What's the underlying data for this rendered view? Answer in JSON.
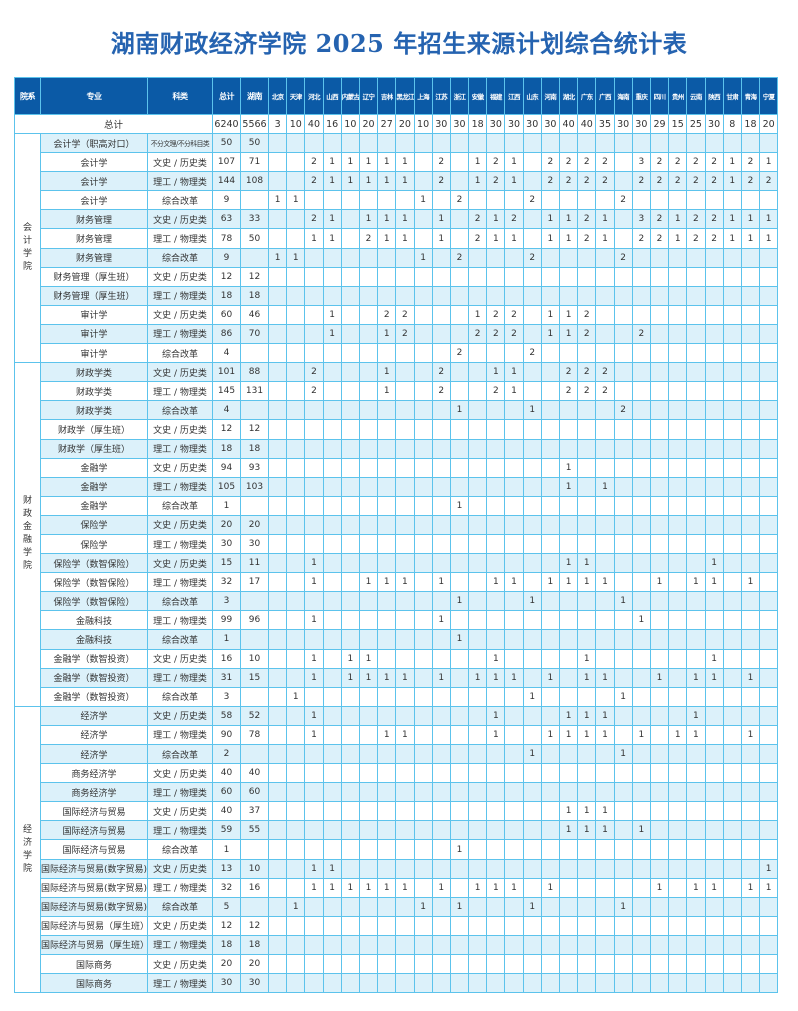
{
  "title": "湖南财政经济学院 2025 年招生来源计划综合统计表",
  "colors": {
    "header_bg": "#0b5aa6",
    "title": "#2563b0",
    "grid": "#5cc3ec",
    "row_shade": "#dcf1fa"
  },
  "headers": {
    "college": "院系",
    "major": "专业",
    "type": "科类",
    "total": "总计",
    "hunan": "湖南"
  },
  "provinces": [
    "北京",
    "天津",
    "河北",
    "山西",
    "内蒙古",
    "辽宁",
    "吉林",
    "黑龙江",
    "上海",
    "江苏",
    "浙江",
    "安徽",
    "福建",
    "江西",
    "山东",
    "河南",
    "湖北",
    "广东",
    "广西",
    "海南",
    "重庆",
    "四川",
    "贵州",
    "云南",
    "陕西",
    "甘肃",
    "青海",
    "宁夏"
  ],
  "total_row": {
    "label": "总计",
    "total": "6240",
    "hunan": "5566",
    "quota": {
      "北京": "3",
      "天津": "10",
      "河北": "40",
      "山西": "16",
      "内蒙古": "10",
      "辽宁": "20",
      "吉林": "27",
      "黑龙江": "20",
      "上海": "10",
      "江苏": "30",
      "浙江": "30",
      "安徽": "18",
      "福建": "30",
      "江西": "30",
      "山东": "30",
      "河南": "30",
      "湖北": "40",
      "广东": "40",
      "广西": "35",
      "海南": "30",
      "重庆": "30",
      "四川": "29",
      "贵州": "15",
      "云南": "25",
      "陕西": "30",
      "甘肃": "8",
      "青海": "18",
      "宁夏": "20"
    }
  },
  "colleges": [
    {
      "name": "会计学院",
      "rows": [
        {
          "major": "会计学（职高对口）",
          "type": "不分文理/不分科目类",
          "total": "50",
          "hunan": "50",
          "quota": {}
        },
        {
          "major": "会计学",
          "type": "文史 / 历史类",
          "total": "107",
          "hunan": "71",
          "quota": {
            "河北": "2",
            "山西": "1",
            "内蒙古": "1",
            "辽宁": "1",
            "吉林": "1",
            "黑龙江": "1",
            "江苏": "2",
            "安徽": "1",
            "福建": "2",
            "江西": "1",
            "河南": "2",
            "湖北": "2",
            "广东": "2",
            "广西": "2",
            "重庆": "3",
            "四川": "2",
            "贵州": "2",
            "云南": "2",
            "陕西": "2",
            "甘肃": "1",
            "青海": "2",
            "宁夏": "1"
          }
        },
        {
          "major": "会计学",
          "type": "理工 / 物理类",
          "total": "144",
          "hunan": "108",
          "quota": {
            "河北": "2",
            "山西": "1",
            "内蒙古": "1",
            "辽宁": "1",
            "吉林": "1",
            "黑龙江": "1",
            "江苏": "2",
            "安徽": "1",
            "福建": "2",
            "江西": "1",
            "河南": "2",
            "湖北": "2",
            "广东": "2",
            "广西": "2",
            "重庆": "2",
            "四川": "2",
            "贵州": "2",
            "云南": "2",
            "陕西": "2",
            "甘肃": "1",
            "青海": "2",
            "宁夏": "2"
          }
        },
        {
          "major": "会计学",
          "type": "综合改革",
          "total": "9",
          "hunan": "",
          "quota": {
            "北京": "1",
            "天津": "1",
            "上海": "1",
            "浙江": "2",
            "山东": "2",
            "海南": "2"
          }
        },
        {
          "major": "财务管理",
          "type": "文史 / 历史类",
          "total": "63",
          "hunan": "33",
          "quota": {
            "河北": "2",
            "山西": "1",
            "辽宁": "1",
            "吉林": "1",
            "黑龙江": "1",
            "江苏": "1",
            "安徽": "2",
            "福建": "1",
            "江西": "2",
            "河南": "1",
            "湖北": "1",
            "广东": "2",
            "广西": "1",
            "重庆": "3",
            "四川": "2",
            "贵州": "1",
            "云南": "2",
            "陕西": "2",
            "甘肃": "1",
            "青海": "1",
            "宁夏": "1"
          }
        },
        {
          "major": "财务管理",
          "type": "理工 / 物理类",
          "total": "78",
          "hunan": "50",
          "quota": {
            "河北": "1",
            "山西": "1",
            "辽宁": "2",
            "吉林": "1",
            "黑龙江": "1",
            "江苏": "1",
            "安徽": "2",
            "福建": "1",
            "江西": "1",
            "河南": "1",
            "湖北": "1",
            "广东": "2",
            "广西": "1",
            "重庆": "2",
            "四川": "2",
            "贵州": "1",
            "云南": "2",
            "陕西": "2",
            "甘肃": "1",
            "青海": "1",
            "宁夏": "1"
          }
        },
        {
          "major": "财务管理",
          "type": "综合改革",
          "total": "9",
          "hunan": "",
          "quota": {
            "北京": "1",
            "天津": "1",
            "上海": "1",
            "浙江": "2",
            "山东": "2",
            "海南": "2"
          }
        },
        {
          "major": "财务管理（厚生班）",
          "type": "文史 / 历史类",
          "total": "12",
          "hunan": "12",
          "quota": {}
        },
        {
          "major": "财务管理（厚生班）",
          "type": "理工 / 物理类",
          "total": "18",
          "hunan": "18",
          "quota": {}
        },
        {
          "major": "审计学",
          "type": "文史 / 历史类",
          "total": "60",
          "hunan": "46",
          "quota": {
            "山西": "1",
            "吉林": "2",
            "黑龙江": "2",
            "安徽": "1",
            "福建": "2",
            "江西": "2",
            "河南": "1",
            "湖北": "1",
            "广东": "2"
          }
        },
        {
          "major": "审计学",
          "type": "理工 / 物理类",
          "total": "86",
          "hunan": "70",
          "quota": {
            "山西": "1",
            "吉林": "1",
            "黑龙江": "2",
            "安徽": "2",
            "福建": "2",
            "江西": "2",
            "河南": "1",
            "湖北": "1",
            "广东": "2",
            "重庆": "2"
          }
        },
        {
          "major": "审计学",
          "type": "综合改革",
          "total": "4",
          "hunan": "",
          "quota": {
            "浙江": "2",
            "山东": "2"
          }
        }
      ]
    },
    {
      "name": "财政金融学院",
      "rows": [
        {
          "major": "财政学类",
          "type": "文史 / 历史类",
          "total": "101",
          "hunan": "88",
          "quota": {
            "河北": "2",
            "吉林": "1",
            "江苏": "2",
            "福建": "1",
            "江西": "1",
            "湖北": "2",
            "广东": "2",
            "广西": "2"
          }
        },
        {
          "major": "财政学类",
          "type": "理工 / 物理类",
          "total": "145",
          "hunan": "131",
          "quota": {
            "河北": "2",
            "吉林": "1",
            "江苏": "2",
            "福建": "2",
            "江西": "1",
            "湖北": "2",
            "广东": "2",
            "广西": "2"
          }
        },
        {
          "major": "财政学类",
          "type": "综合改革",
          "total": "4",
          "hunan": "",
          "quota": {
            "浙江": "1",
            "山东": "1",
            "海南": "2"
          }
        },
        {
          "major": "财政学（厚生班）",
          "type": "文史 / 历史类",
          "total": "12",
          "hunan": "12",
          "quota": {}
        },
        {
          "major": "财政学（厚生班）",
          "type": "理工 / 物理类",
          "total": "18",
          "hunan": "18",
          "quota": {}
        },
        {
          "major": "金融学",
          "type": "文史 / 历史类",
          "total": "94",
          "hunan": "93",
          "quota": {
            "湖北": "1"
          }
        },
        {
          "major": "金融学",
          "type": "理工 / 物理类",
          "total": "105",
          "hunan": "103",
          "quota": {
            "湖北": "1",
            "广西": "1"
          }
        },
        {
          "major": "金融学",
          "type": "综合改革",
          "total": "1",
          "hunan": "",
          "quota": {
            "浙江": "1"
          }
        },
        {
          "major": "保险学",
          "type": "文史 / 历史类",
          "total": "20",
          "hunan": "20",
          "quota": {}
        },
        {
          "major": "保险学",
          "type": "理工 / 物理类",
          "total": "30",
          "hunan": "30",
          "quota": {}
        },
        {
          "major": "保险学（数智保险）",
          "type": "文史 / 历史类",
          "total": "15",
          "hunan": "11",
          "quota": {
            "河北": "1",
            "湖北": "1",
            "广东": "1",
            "陕西": "1"
          }
        },
        {
          "major": "保险学（数智保险）",
          "type": "理工 / 物理类",
          "total": "32",
          "hunan": "17",
          "quota": {
            "河北": "1",
            "辽宁": "1",
            "吉林": "1",
            "黑龙江": "1",
            "江苏": "1",
            "福建": "1",
            "江西": "1",
            "河南": "1",
            "湖北": "1",
            "广东": "1",
            "广西": "1",
            "四川": "1",
            "云南": "1",
            "陕西": "1",
            "青海": "1"
          }
        },
        {
          "major": "保险学（数智保险）",
          "type": "综合改革",
          "total": "3",
          "hunan": "",
          "quota": {
            "浙江": "1",
            "山东": "1",
            "海南": "1"
          }
        },
        {
          "major": "金融科技",
          "type": "理工 / 物理类",
          "total": "99",
          "hunan": "96",
          "quota": {
            "河北": "1",
            "江苏": "1",
            "重庆": "1"
          }
        },
        {
          "major": "金融科技",
          "type": "综合改革",
          "total": "1",
          "hunan": "",
          "quota": {
            "浙江": "1"
          }
        },
        {
          "major": "金融学（数智投资）",
          "type": "文史 / 历史类",
          "total": "16",
          "hunan": "10",
          "quota": {
            "河北": "1",
            "内蒙古": "1",
            "辽宁": "1",
            "福建": "1",
            "广东": "1",
            "陕西": "1"
          }
        },
        {
          "major": "金融学（数智投资）",
          "type": "理工 / 物理类",
          "total": "31",
          "hunan": "15",
          "quota": {
            "河北": "1",
            "内蒙古": "1",
            "辽宁": "1",
            "吉林": "1",
            "黑龙江": "1",
            "江苏": "1",
            "安徽": "1",
            "福建": "1",
            "江西": "1",
            "河南": "1",
            "广东": "1",
            "广西": "1",
            "四川": "1",
            "云南": "1",
            "陕西": "1",
            "青海": "1"
          }
        },
        {
          "major": "金融学（数智投资）",
          "type": "综合改革",
          "total": "3",
          "hunan": "",
          "quota": {
            "天津": "1",
            "山东": "1",
            "海南": "1"
          }
        }
      ]
    },
    {
      "name": "经济学院",
      "rows": [
        {
          "major": "经济学",
          "type": "文史 / 历史类",
          "total": "58",
          "hunan": "52",
          "quota": {
            "河北": "1",
            "福建": "1",
            "湖北": "1",
            "广东": "1",
            "广西": "1",
            "云南": "1"
          }
        },
        {
          "major": "经济学",
          "type": "理工 / 物理类",
          "total": "90",
          "hunan": "78",
          "quota": {
            "河北": "1",
            "吉林": "1",
            "黑龙江": "1",
            "福建": "1",
            "河南": "1",
            "湖北": "1",
            "广东": "1",
            "广西": "1",
            "重庆": "1",
            "贵州": "1",
            "云南": "1",
            "青海": "1"
          }
        },
        {
          "major": "经济学",
          "type": "综合改革",
          "total": "2",
          "hunan": "",
          "quota": {
            "山东": "1",
            "海南": "1"
          }
        },
        {
          "major": "商务经济学",
          "type": "文史 / 历史类",
          "total": "40",
          "hunan": "40",
          "quota": {}
        },
        {
          "major": "商务经济学",
          "type": "理工 / 物理类",
          "total": "60",
          "hunan": "60",
          "quota": {}
        },
        {
          "major": "国际经济与贸易",
          "type": "文史 / 历史类",
          "total": "40",
          "hunan": "37",
          "quota": {
            "湖北": "1",
            "广东": "1",
            "广西": "1"
          }
        },
        {
          "major": "国际经济与贸易",
          "type": "理工 / 物理类",
          "total": "59",
          "hunan": "55",
          "quota": {
            "湖北": "1",
            "广东": "1",
            "广西": "1",
            "重庆": "1"
          }
        },
        {
          "major": "国际经济与贸易",
          "type": "综合改革",
          "total": "1",
          "hunan": "",
          "quota": {
            "浙江": "1"
          }
        },
        {
          "major": "国际经济与贸易(数字贸易)",
          "type": "文史 / 历史类",
          "total": "13",
          "hunan": "10",
          "quota": {
            "河北": "1",
            "山西": "1",
            "宁夏": "1"
          }
        },
        {
          "major": "国际经济与贸易(数字贸易)",
          "type": "理工 / 物理类",
          "total": "32",
          "hunan": "16",
          "quota": {
            "河北": "1",
            "山西": "1",
            "内蒙古": "1",
            "辽宁": "1",
            "吉林": "1",
            "黑龙江": "1",
            "江苏": "1",
            "安徽": "1",
            "福建": "1",
            "江西": "1",
            "河南": "1",
            "四川": "1",
            "云南": "1",
            "陕西": "1",
            "青海": "1",
            "宁夏": "1"
          }
        },
        {
          "major": "国际经济与贸易(数字贸易)",
          "type": "综合改革",
          "total": "5",
          "hunan": "",
          "quota": {
            "天津": "1",
            "上海": "1",
            "浙江": "1",
            "山东": "1",
            "海南": "1"
          }
        },
        {
          "major": "国际经济与贸易（厚生班）",
          "type": "文史 / 历史类",
          "total": "12",
          "hunan": "12",
          "quota": {}
        },
        {
          "major": "国际经济与贸易（厚生班）",
          "type": "理工 / 物理类",
          "total": "18",
          "hunan": "18",
          "quota": {}
        },
        {
          "major": "国际商务",
          "type": "文史 / 历史类",
          "total": "20",
          "hunan": "20",
          "quota": {}
        },
        {
          "major": "国际商务",
          "type": "理工 / 物理类",
          "total": "30",
          "hunan": "30",
          "quota": {}
        }
      ]
    }
  ]
}
